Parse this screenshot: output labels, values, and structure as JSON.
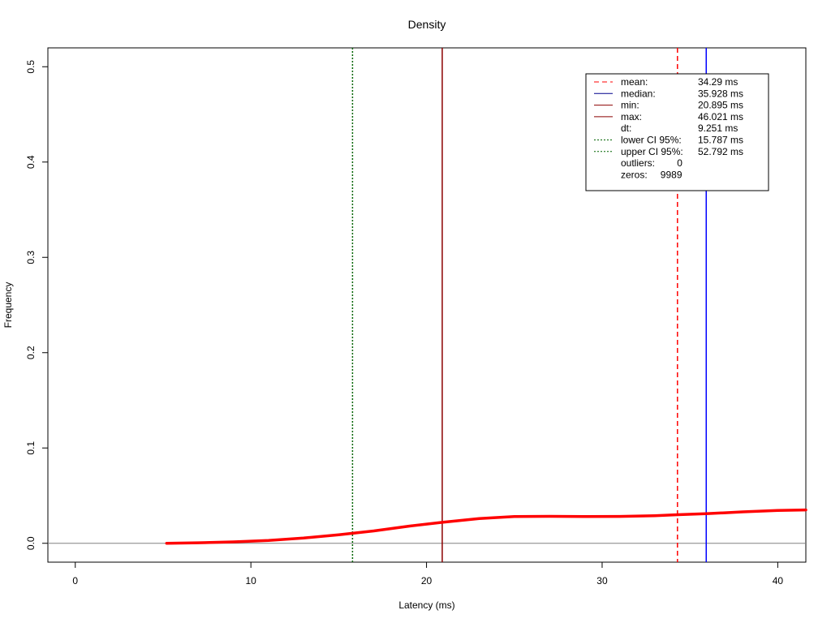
{
  "chart_data": {
    "type": "line",
    "title": "Density",
    "xlabel": "Latency (ms)",
    "ylabel": "Frequency",
    "xlim": [
      -1.56,
      41.6
    ],
    "ylim": [
      -0.0198,
      0.5198
    ],
    "x_ticks": [
      0,
      10,
      20,
      30,
      40
    ],
    "x_tick_labels": [
      "0",
      "10",
      "20",
      "30",
      "40"
    ],
    "y_ticks": [
      0.0,
      0.1,
      0.2,
      0.3,
      0.4,
      0.5
    ],
    "y_tick_labels": [
      "0.0",
      "0.1",
      "0.2",
      "0.3",
      "0.4",
      "0.5"
    ],
    "baseline": 0,
    "grid": false,
    "legend_position": "top-right",
    "series": [
      {
        "color": "#ff0000",
        "x": [
          5.2,
          7,
          9,
          11,
          13,
          15,
          17,
          19,
          20.9,
          23,
          25,
          27,
          29,
          31,
          33,
          34.3,
          35.9,
          38,
          40,
          41.6
        ],
        "y": [
          0.0,
          0.0005,
          0.0015,
          0.003,
          0.0055,
          0.009,
          0.013,
          0.018,
          0.022,
          0.026,
          0.028,
          0.0283,
          0.028,
          0.0282,
          0.029,
          0.03,
          0.031,
          0.033,
          0.0345,
          0.035
        ]
      }
    ],
    "reference_lines": [
      {
        "name": "mean",
        "x": 34.29,
        "color": "#ff0000",
        "dash": "dashed"
      },
      {
        "name": "median",
        "x": 35.928,
        "color": "#0000ff",
        "dash": "solid"
      },
      {
        "name": "min",
        "x": 20.895,
        "color": "#8b0000",
        "dash": "solid"
      },
      {
        "name": "max",
        "x": 46.021,
        "color": "#8b0000",
        "dash": "solid"
      },
      {
        "name": "lower CI 95%",
        "x": 15.787,
        "color": "#006400",
        "dash": "dotted"
      },
      {
        "name": "upper CI 95%",
        "x": 52.792,
        "color": "#006400",
        "dash": "dotted"
      }
    ],
    "legend": [
      {
        "label": "mean:",
        "value": "34.29 ms",
        "color": "#ff0000",
        "dash": "dashed"
      },
      {
        "label": "median:",
        "value": "35.928 ms",
        "color": "#00008b",
        "dash": "solid"
      },
      {
        "label": "min:",
        "value": "20.895 ms",
        "color": "#8b0000",
        "dash": "solid"
      },
      {
        "label": "max:",
        "value": "46.021 ms",
        "color": "#8b0000",
        "dash": "solid"
      },
      {
        "label": "dt:",
        "value": "9.251 ms",
        "color": "",
        "dash": "none"
      },
      {
        "label": "lower CI 95%:",
        "value": "15.787 ms",
        "color": "#006400",
        "dash": "dotted"
      },
      {
        "label": "upper CI 95%:",
        "value": "52.792 ms",
        "color": "#006400",
        "dash": "dotted"
      },
      {
        "label": "outliers:",
        "value": "0",
        "color": "",
        "dash": "none"
      },
      {
        "label": "zeros:",
        "value": "9989",
        "color": "",
        "dash": "none"
      }
    ]
  }
}
